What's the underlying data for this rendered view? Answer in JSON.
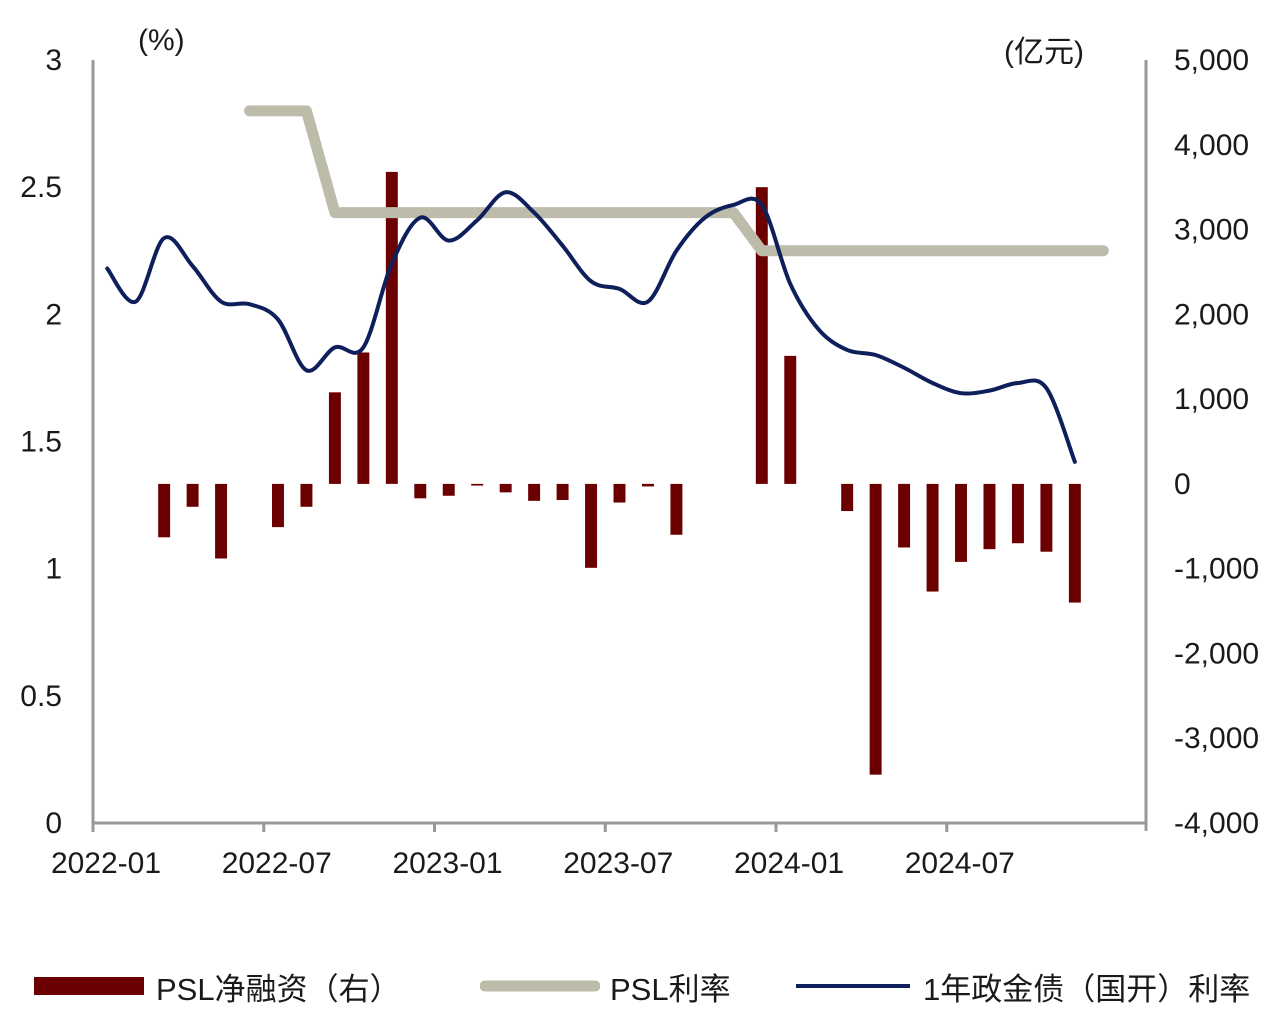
{
  "chart_data": {
    "type": "bar+line",
    "left_axis": {
      "unit": "(%)",
      "ylim": [
        0,
        3
      ],
      "ticks": [
        "0",
        "0.5",
        "1",
        "1.5",
        "2",
        "2.5",
        "3"
      ]
    },
    "right_axis": {
      "unit": "(亿元)",
      "ylim": [
        -4000,
        5000
      ],
      "ticks": [
        "-4,000",
        "-3,000",
        "-2,000",
        "-1,000",
        "0",
        "1,000",
        "2,000",
        "3,000",
        "4,000",
        "5,000"
      ]
    },
    "x_ticks": [
      "2022-01",
      "2022-07",
      "2023-01",
      "2023-07",
      "2024-01",
      "2024-07"
    ],
    "months": [
      "2022-01",
      "2022-02",
      "2022-03",
      "2022-04",
      "2022-05",
      "2022-06",
      "2022-07",
      "2022-08",
      "2022-09",
      "2022-10",
      "2022-11",
      "2022-12",
      "2023-01",
      "2023-02",
      "2023-03",
      "2023-04",
      "2023-05",
      "2023-06",
      "2023-07",
      "2023-08",
      "2023-09",
      "2023-10",
      "2023-11",
      "2023-12",
      "2024-01",
      "2024-02",
      "2024-03",
      "2024-04",
      "2024-05",
      "2024-06",
      "2024-07",
      "2024-08",
      "2024-09",
      "2024-10",
      "2024-11",
      "2024-12",
      "2025-01"
    ],
    "series": [
      {
        "name": "PSL净融资（右）",
        "kind": "bar",
        "axis": "right",
        "color": "#6b0000",
        "points": [
          [
            "2022-03",
            -630
          ],
          [
            "2022-04",
            -270
          ],
          [
            "2022-05",
            -880
          ],
          [
            "2022-07",
            -510
          ],
          [
            "2022-08",
            -270
          ],
          [
            "2022-09",
            1080
          ],
          [
            "2022-10",
            1550
          ],
          [
            "2022-11",
            3680
          ],
          [
            "2022-12",
            -170
          ],
          [
            "2023-01",
            -140
          ],
          [
            "2023-02",
            -20
          ],
          [
            "2023-03",
            -100
          ],
          [
            "2023-04",
            -200
          ],
          [
            "2023-05",
            -190
          ],
          [
            "2023-06",
            -990
          ],
          [
            "2023-07",
            -220
          ],
          [
            "2023-08",
            -30
          ],
          [
            "2023-09",
            -600
          ],
          [
            "2023-12",
            3500
          ],
          [
            "2024-01",
            1510
          ],
          [
            "2024-03",
            -320
          ],
          [
            "2024-04",
            -3430
          ],
          [
            "2024-05",
            -750
          ],
          [
            "2024-06",
            -1270
          ],
          [
            "2024-07",
            -920
          ],
          [
            "2024-08",
            -770
          ],
          [
            "2024-09",
            -700
          ],
          [
            "2024-10",
            -800
          ],
          [
            "2024-11",
            -1400
          ]
        ]
      },
      {
        "name": "PSL利率",
        "kind": "line",
        "axis": "left",
        "color": "#bdbcab",
        "points": [
          [
            "2022-06",
            2.8
          ],
          [
            "2022-08",
            2.8
          ],
          [
            "2022-09",
            2.4
          ],
          [
            "2023-11",
            2.4
          ],
          [
            "2023-12",
            2.25
          ],
          [
            "2024-12",
            2.25
          ]
        ]
      },
      {
        "name": "1年政金债（国开）利率",
        "kind": "line",
        "axis": "left",
        "color": "#0f1f5c",
        "points": [
          [
            "2022-01",
            2.18
          ],
          [
            "2022-02",
            2.05
          ],
          [
            "2022-03",
            2.3
          ],
          [
            "2022-04",
            2.19
          ],
          [
            "2022-05",
            2.05
          ],
          [
            "2022-06",
            2.04
          ],
          [
            "2022-07",
            1.98
          ],
          [
            "2022-08",
            1.78
          ],
          [
            "2022-09",
            1.87
          ],
          [
            "2022-10",
            1.87
          ],
          [
            "2022-11",
            2.2
          ],
          [
            "2022-12",
            2.38
          ],
          [
            "2023-01",
            2.29
          ],
          [
            "2023-02",
            2.37
          ],
          [
            "2023-03",
            2.48
          ],
          [
            "2023-04",
            2.4
          ],
          [
            "2023-05",
            2.27
          ],
          [
            "2023-06",
            2.13
          ],
          [
            "2023-07",
            2.1
          ],
          [
            "2023-08",
            2.05
          ],
          [
            "2023-09",
            2.25
          ],
          [
            "2023-10",
            2.38
          ],
          [
            "2023-11",
            2.43
          ],
          [
            "2023-12",
            2.43
          ],
          [
            "2024-01",
            2.12
          ],
          [
            "2024-02",
            1.94
          ],
          [
            "2024-03",
            1.86
          ],
          [
            "2024-04",
            1.84
          ],
          [
            "2024-05",
            1.79
          ],
          [
            "2024-06",
            1.73
          ],
          [
            "2024-07",
            1.69
          ],
          [
            "2024-08",
            1.7
          ],
          [
            "2024-09",
            1.73
          ],
          [
            "2024-10",
            1.71
          ],
          [
            "2024-11",
            1.42
          ]
        ]
      }
    ]
  }
}
